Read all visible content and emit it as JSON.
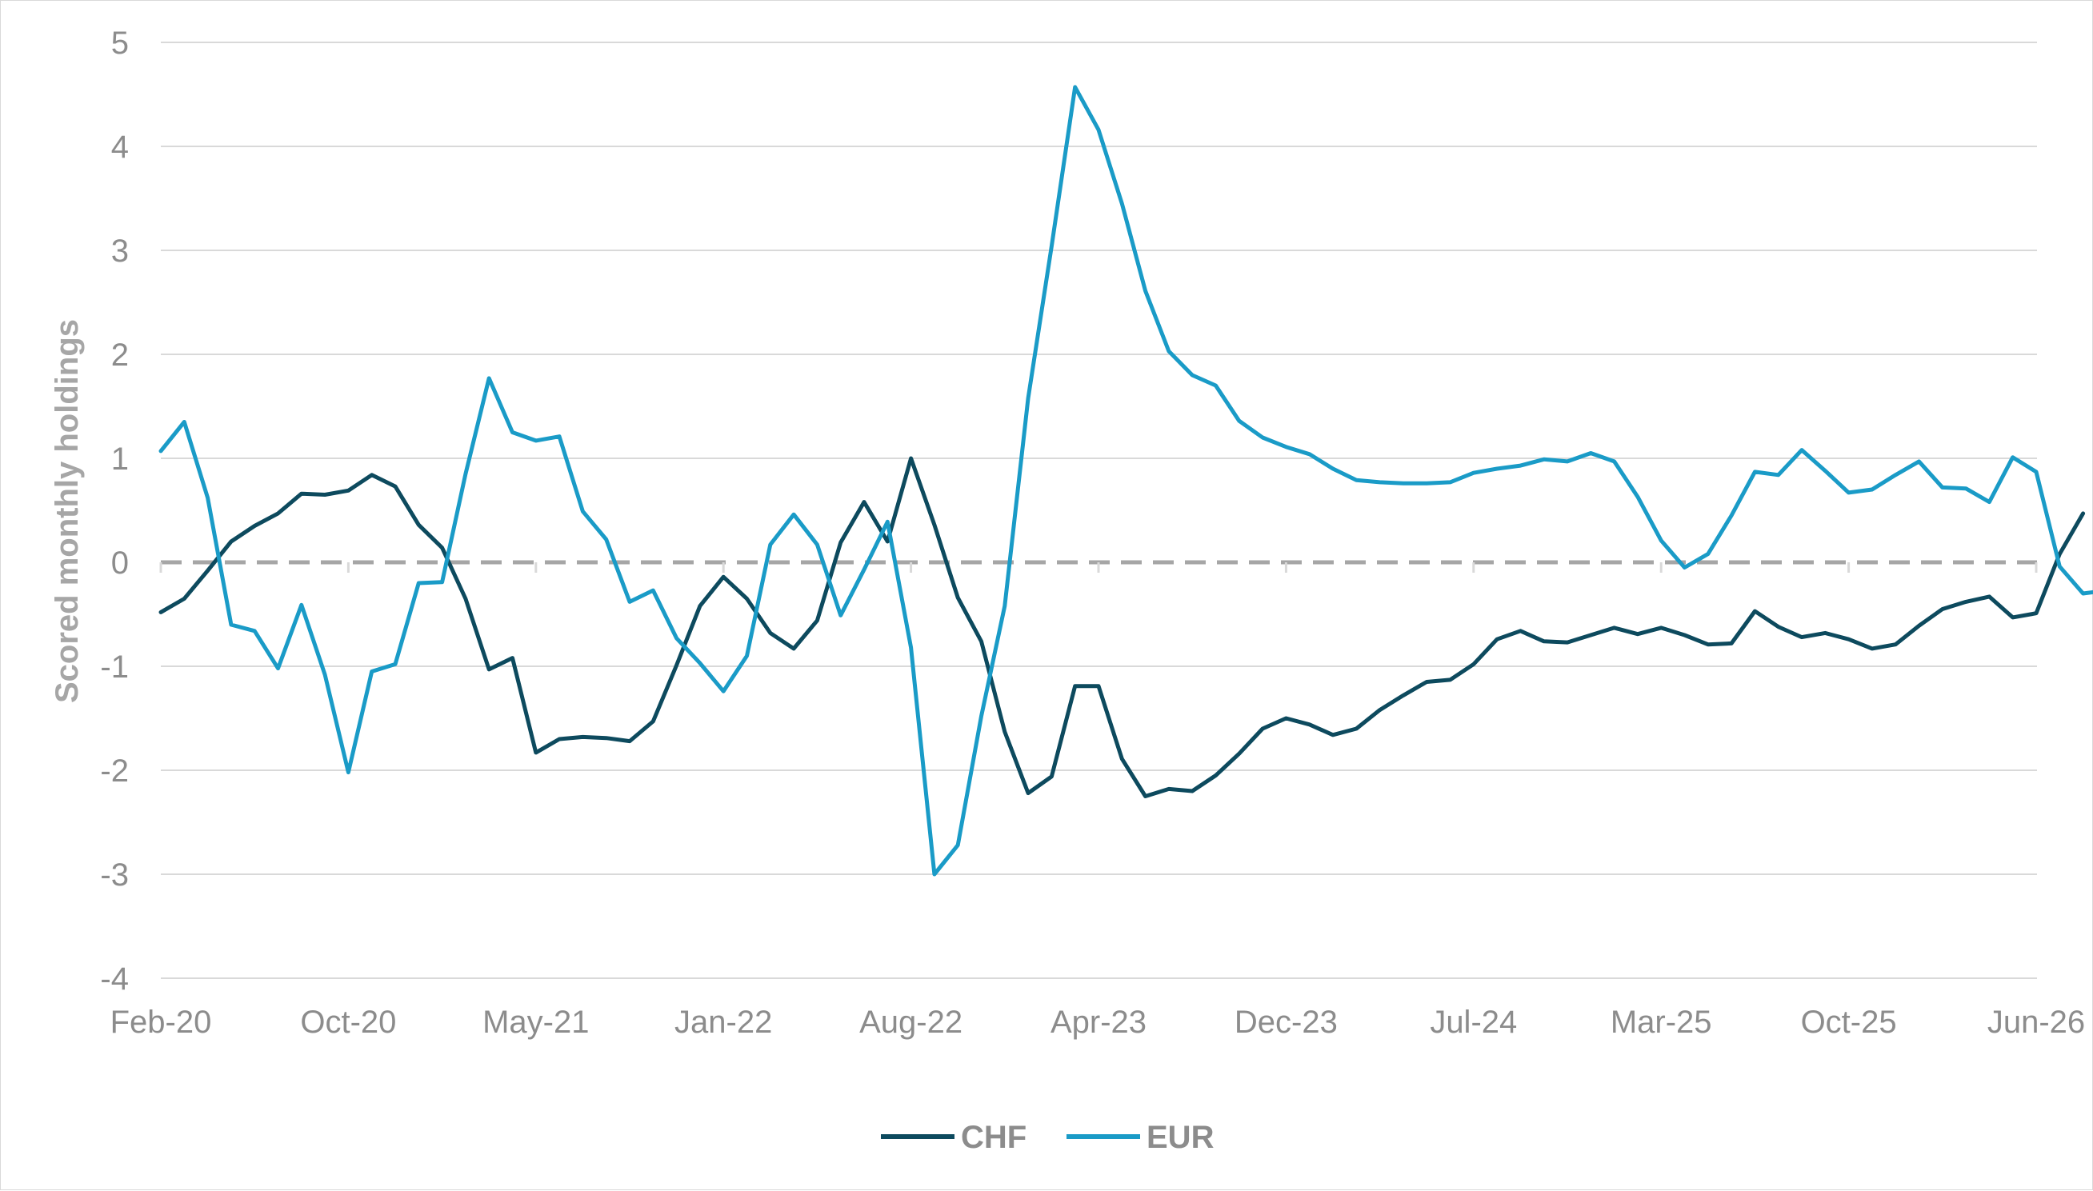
{
  "chart_data": {
    "type": "line",
    "title": "",
    "xlabel": "",
    "ylabel": "Scored monthly holdings",
    "ylim": [
      -4,
      5
    ],
    "yticks": [
      -4,
      -3,
      -2,
      -1,
      0,
      1,
      2,
      3,
      4,
      5
    ],
    "grid": "horizontal",
    "legend_position": "bottom",
    "reference_line": {
      "y": 0,
      "style": "dashed",
      "color": "#a6a6a6"
    },
    "x_tick_labels": [
      "Feb-20",
      "Oct-20",
      "May-21",
      "Jan-22",
      "Aug-22",
      "Apr-23",
      "Dec-23",
      "Jul-24",
      "Mar-25",
      "Oct-25",
      "Jun-26"
    ],
    "x_tick_indices": [
      0,
      8,
      16,
      24,
      32,
      40,
      48,
      56,
      64,
      72,
      80
    ],
    "series": [
      {
        "name": "CHF",
        "color": "#0d4a5e",
        "values": [
          -0.48,
          -0.35,
          -0.08,
          0.2,
          0.35,
          0.47,
          0.66,
          0.65,
          0.69,
          0.84,
          0.73,
          0.36,
          0.14,
          -0.35,
          -1.03,
          -0.92,
          -1.83,
          -1.7,
          -1.68,
          -1.69,
          -1.72,
          -1.53,
          -0.99,
          -0.42,
          -0.14,
          -0.35,
          -0.68,
          -0.83,
          -0.56,
          0.19,
          0.58,
          0.2,
          1.0,
          0.36,
          -0.34,
          -0.76,
          -1.63,
          -2.22,
          -2.06,
          -1.19,
          -1.19,
          -1.89,
          -2.25,
          -2.18,
          -2.2,
          -2.05,
          -1.84,
          -1.6,
          -1.5,
          -1.56,
          -1.66,
          -1.6,
          -1.42,
          -1.28,
          -1.15,
          -1.13,
          -0.98,
          -0.74,
          -0.66,
          -0.76,
          -0.77,
          -0.7,
          -0.63,
          -0.69,
          -0.63,
          -0.7,
          -0.79,
          -0.78,
          -0.47,
          -0.62,
          -0.72,
          -0.68,
          -0.74,
          -0.83,
          -0.79,
          -0.61,
          -0.45,
          -0.38,
          -0.33,
          -0.53,
          -0.49,
          0.08,
          0.47
        ]
      },
      {
        "name": "EUR",
        "color": "#1a9bc7",
        "values": [
          1.07,
          1.35,
          0.62,
          -0.6,
          -0.66,
          -1.02,
          -0.41,
          -1.08,
          -2.02,
          -1.05,
          -0.98,
          -0.2,
          -0.19,
          0.85,
          1.77,
          1.25,
          1.17,
          1.21,
          0.49,
          0.22,
          -0.38,
          -0.27,
          -0.73,
          -0.97,
          -1.24,
          -0.9,
          0.17,
          0.46,
          0.17,
          -0.51,
          -0.07,
          0.39,
          -0.82,
          -3.0,
          -2.72,
          -1.48,
          -0.42,
          1.58,
          3.04,
          4.57,
          4.16,
          3.45,
          2.61,
          2.03,
          1.8,
          1.7,
          1.36,
          1.2,
          1.11,
          1.04,
          0.9,
          0.79,
          0.77,
          0.76,
          0.76,
          0.77,
          0.86,
          0.9,
          0.93,
          0.99,
          0.97,
          1.05,
          0.97,
          0.63,
          0.21,
          -0.05,
          0.08,
          0.45,
          0.87,
          0.84,
          1.08,
          0.88,
          0.67,
          0.7,
          0.84,
          0.97,
          0.72,
          0.71,
          0.58,
          1.01,
          0.87,
          -0.04,
          -0.3,
          -0.27
        ]
      }
    ]
  }
}
